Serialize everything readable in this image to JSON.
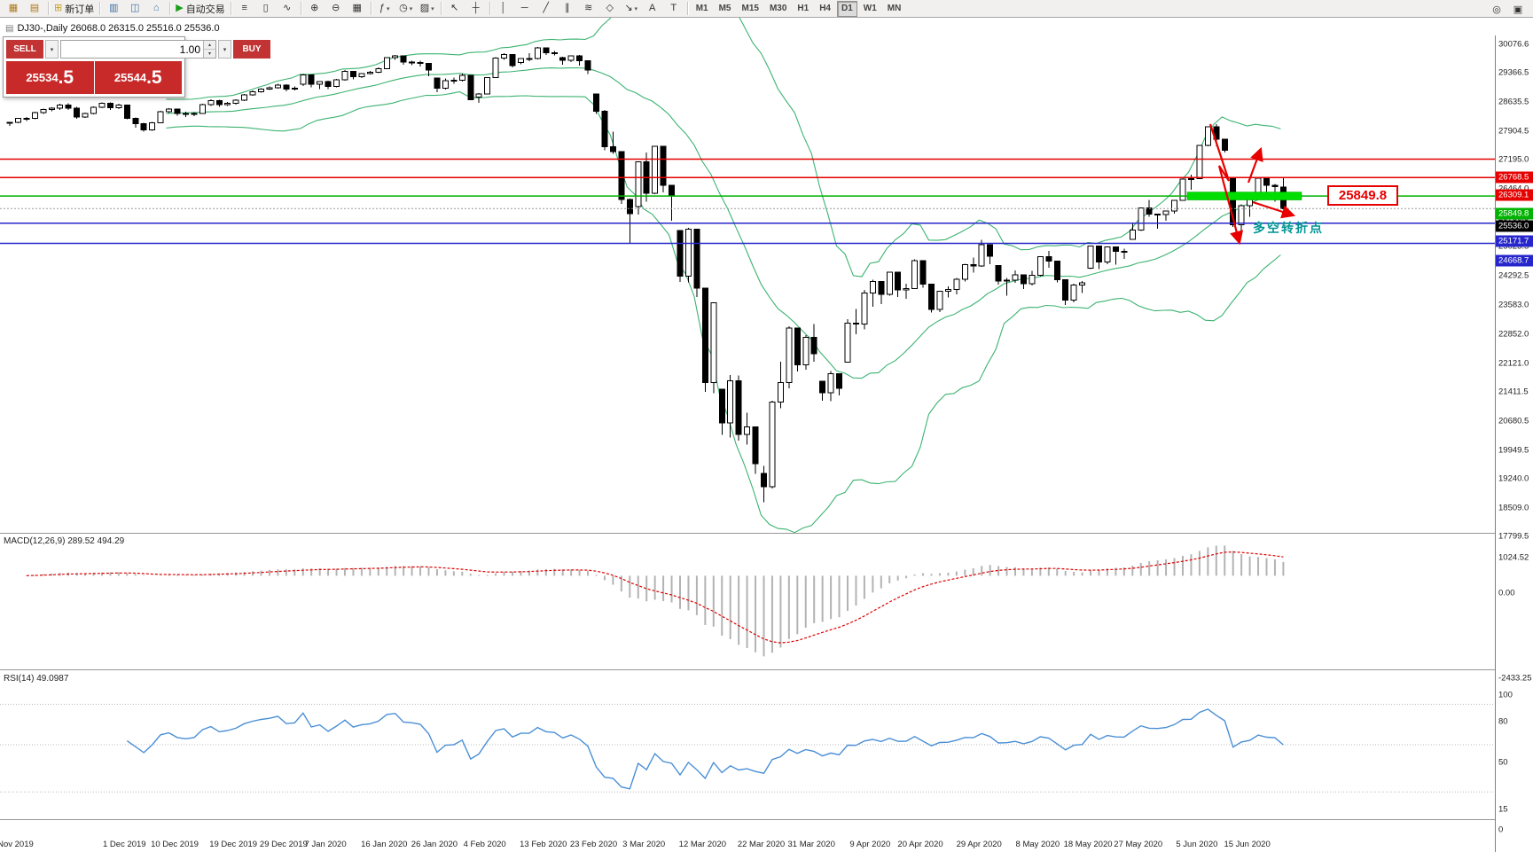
{
  "glyphs": {
    "caret_down": "▾",
    "spin_up": "▴",
    "spin_down": "▾"
  },
  "toolbar": {
    "groups": [
      {
        "items": [
          {
            "name": "new-chart-icon",
            "glyph": "▦",
            "color": "#b07820"
          },
          {
            "name": "chart-profiles-icon",
            "glyph": "▤",
            "color": "#b07820"
          }
        ]
      },
      {
        "items": [
          {
            "name": "new-order-button",
            "glyph": "⊞",
            "color": "#c7a020",
            "label": "新订单"
          }
        ]
      },
      {
        "items": [
          {
            "name": "market-watch-icon",
            "glyph": "▥",
            "color": "#3a6ea5"
          },
          {
            "name": "data-window-icon",
            "glyph": "◫",
            "color": "#3a6ea5"
          },
          {
            "name": "navigator-icon",
            "glyph": "⌂",
            "color": "#3a6ea5"
          }
        ]
      },
      {
        "items": [
          {
            "name": "auto-trading-button",
            "glyph": "▶",
            "color": "#1a9e1a",
            "label": "自动交易"
          }
        ]
      },
      {
        "items": [
          {
            "name": "bar-chart-icon",
            "glyph": "≡"
          },
          {
            "name": "candlestick-chart-icon",
            "glyph": "▯"
          },
          {
            "name": "line-chart-icon",
            "glyph": "∿"
          }
        ]
      },
      {
        "items": [
          {
            "name": "zoom-in-icon",
            "glyph": "⊕"
          },
          {
            "name": "zoom-out-icon",
            "glyph": "⊖"
          },
          {
            "name": "tile-windows-icon",
            "glyph": "▦"
          }
        ]
      },
      {
        "items": [
          {
            "name": "indicators-icon",
            "glyph": "ƒ",
            "caret": true
          },
          {
            "name": "periods-icon",
            "glyph": "◷",
            "caret": true
          },
          {
            "name": "templates-icon",
            "glyph": "▨",
            "caret": true
          }
        ]
      },
      {
        "items": [
          {
            "name": "cursor-icon",
            "glyph": "↖"
          },
          {
            "name": "crosshair-icon",
            "glyph": "┼"
          }
        ]
      },
      {
        "items": [
          {
            "name": "vertical-line-icon",
            "glyph": "│"
          },
          {
            "name": "horizontal-line-icon",
            "glyph": "─"
          },
          {
            "name": "trendline-icon",
            "glyph": "╱"
          },
          {
            "name": "channel-icon",
            "glyph": "∥"
          },
          {
            "name": "fibonacci-icon",
            "glyph": "≋"
          },
          {
            "name": "shapes-icon",
            "glyph": "◇"
          },
          {
            "name": "arrows-icon",
            "glyph": "↘",
            "caret": true
          },
          {
            "name": "text-icon",
            "glyph": "A"
          },
          {
            "name": "text-label-icon",
            "glyph": "T"
          }
        ]
      }
    ],
    "timeframes": [
      "M1",
      "M5",
      "M15",
      "M30",
      "H1",
      "H4",
      "D1",
      "W1",
      "MN"
    ],
    "active_timeframe": "D1",
    "right_icons": [
      {
        "name": "search-icon",
        "glyph": "◎"
      },
      {
        "name": "chart-list-icon",
        "glyph": "▣"
      }
    ]
  },
  "chart": {
    "symbol_icon": "▤",
    "symbol_title": "DJ30-,Daily  26068.0 26315.0 25516.0 25536.0",
    "trade_panel": {
      "sell_label": "SELL",
      "buy_label": "BUY",
      "volume": "1.00",
      "bid": "25534.5",
      "ask": "25544.5"
    },
    "axis_labels": [
      "30076.6",
      "29366.5",
      "28635.5",
      "27904.5",
      "27195.0",
      "26464.0",
      "25736.5",
      "25023.5",
      "24292.5",
      "23583.0",
      "22852.0",
      "22121.0",
      "21411.5",
      "20680.5",
      "19949.5",
      "19240.0",
      "18509.0",
      "17799.5"
    ],
    "levels": [
      {
        "label": "26768.5",
        "price": 26768.5,
        "color": "#e60000"
      },
      {
        "label": "26309.1",
        "price": 26309.1,
        "color": "#e60000"
      },
      {
        "label": "25849.8",
        "price": 25849.8,
        "color": "#00b300"
      },
      {
        "label": "25171.7",
        "price": 25171.7,
        "color": "#2626cc"
      },
      {
        "label": "24668.7",
        "price": 24668.7,
        "color": "#2626cc"
      }
    ],
    "current_price": {
      "label": "25536.0",
      "price": 25536.0,
      "color": "#000000"
    },
    "support_zone": {
      "price": 25849.8,
      "color": "#00dd00"
    },
    "annotations": {
      "price_callout": "25849.8",
      "turning_point": "多空转折点",
      "arrow_color": "#e60000"
    },
    "bands_color": "#3CB371",
    "date_labels": [
      {
        "text": "Nov 2019",
        "i": 1
      },
      {
        "text": "1 Dec 2019",
        "i": 14
      },
      {
        "text": "10 Dec 2019",
        "i": 20
      },
      {
        "text": "19 Dec 2019",
        "i": 27
      },
      {
        "text": "29 Dec 2019",
        "i": 33
      },
      {
        "text": "7 Jan 2020",
        "i": 38
      },
      {
        "text": "16 Jan 2020",
        "i": 45
      },
      {
        "text": "26 Jan 2020",
        "i": 51
      },
      {
        "text": "4 Feb 2020",
        "i": 57
      },
      {
        "text": "13 Feb 2020",
        "i": 64
      },
      {
        "text": "23 Feb 2020",
        "i": 70
      },
      {
        "text": "3 Mar 2020",
        "i": 76
      },
      {
        "text": "12 Mar 2020",
        "i": 83
      },
      {
        "text": "22 Mar 2020",
        "i": 90
      },
      {
        "text": "31 Mar 2020",
        "i": 96
      },
      {
        "text": "9 Apr 2020",
        "i": 103
      },
      {
        "text": "20 Apr 2020",
        "i": 109
      },
      {
        "text": "29 Apr 2020",
        "i": 116
      },
      {
        "text": "8 May 2020",
        "i": 123
      },
      {
        "text": "18 May 2020",
        "i": 129
      },
      {
        "text": "27 May 2020",
        "i": 135
      },
      {
        "text": "5 Jun 2020",
        "i": 142
      },
      {
        "text": "15 Jun 2020",
        "i": 148
      }
    ],
    "candles": [
      [
        27683,
        27700,
        27600,
        27691
      ],
      [
        27691,
        27800,
        27660,
        27783
      ],
      [
        27783,
        27820,
        27720,
        27782
      ],
      [
        27782,
        27950,
        27760,
        27934
      ],
      [
        27934,
        28030,
        27900,
        28004
      ],
      [
        28004,
        28060,
        27960,
        28036
      ],
      [
        28036,
        28150,
        28000,
        28121
      ],
      [
        28121,
        28160,
        28000,
        28045
      ],
      [
        28045,
        28070,
        27780,
        27821
      ],
      [
        27821,
        27930,
        27800,
        27911
      ],
      [
        27911,
        28090,
        27890,
        28066
      ],
      [
        28066,
        28180,
        28040,
        28164
      ],
      [
        28164,
        28180,
        28000,
        28051
      ],
      [
        28051,
        28150,
        28020,
        28121
      ],
      [
        28121,
        28130,
        27770,
        27783
      ],
      [
        27783,
        27810,
        27550,
        27650
      ],
      [
        27650,
        27680,
        27460,
        27502
      ],
      [
        27502,
        27700,
        27480,
        27678
      ],
      [
        27678,
        27970,
        27660,
        27955
      ],
      [
        27955,
        28040,
        27920,
        28015
      ],
      [
        28015,
        28030,
        27850,
        27910
      ],
      [
        27910,
        27950,
        27820,
        27882
      ],
      [
        27882,
        27940,
        27840,
        27912
      ],
      [
        27912,
        28150,
        27900,
        28132
      ],
      [
        28132,
        28260,
        28100,
        28235
      ],
      [
        28235,
        28250,
        28080,
        28135
      ],
      [
        28135,
        28200,
        28100,
        28168
      ],
      [
        28168,
        28260,
        28130,
        28236
      ],
      [
        28236,
        28400,
        28220,
        28376
      ],
      [
        28376,
        28480,
        28350,
        28455
      ],
      [
        28455,
        28540,
        28430,
        28515
      ],
      [
        28515,
        28580,
        28490,
        28551
      ],
      [
        28551,
        28650,
        28530,
        28621
      ],
      [
        28621,
        28640,
        28460,
        28515
      ],
      [
        28515,
        28580,
        28480,
        28538
      ],
      [
        28638,
        28890,
        28600,
        28869
      ],
      [
        28869,
        28880,
        28560,
        28635
      ],
      [
        28635,
        28720,
        28520,
        28703
      ],
      [
        28703,
        28730,
        28520,
        28583
      ],
      [
        28583,
        28770,
        28560,
        28745
      ],
      [
        28745,
        28990,
        28730,
        28957
      ],
      [
        28957,
        28970,
        28760,
        28824
      ],
      [
        28824,
        28920,
        28790,
        28907
      ],
      [
        28907,
        28970,
        28880,
        28939
      ],
      [
        28939,
        29060,
        28920,
        29030
      ],
      [
        29030,
        29310,
        29010,
        29297
      ],
      [
        29297,
        29374,
        29250,
        29348
      ],
      [
        29348,
        29360,
        29130,
        29196
      ],
      [
        29196,
        29230,
        29110,
        29186
      ],
      [
        29186,
        29220,
        29080,
        29160
      ],
      [
        29160,
        29170,
        28840,
        28990
      ],
      [
        28790,
        28800,
        28440,
        28536
      ],
      [
        28536,
        28780,
        28510,
        28723
      ],
      [
        28723,
        28810,
        28650,
        28734
      ],
      [
        28734,
        28900,
        28700,
        28859
      ],
      [
        28859,
        28860,
        28250,
        28256
      ],
      [
        28320,
        28420,
        28170,
        28400
      ],
      [
        28400,
        28820,
        28390,
        28808
      ],
      [
        28808,
        29310,
        28800,
        29291
      ],
      [
        29291,
        29409,
        29250,
        29380
      ],
      [
        29380,
        29390,
        29060,
        29103
      ],
      [
        29180,
        29290,
        29140,
        29277
      ],
      [
        29277,
        29415,
        29210,
        29276
      ],
      [
        29276,
        29568,
        29260,
        29551
      ],
      [
        29551,
        29560,
        29370,
        29423
      ],
      [
        29423,
        29470,
        29360,
        29398
      ],
      [
        29300,
        29320,
        29120,
        29232
      ],
      [
        29232,
        29360,
        29190,
        29348
      ],
      [
        29348,
        29370,
        29100,
        29220
      ],
      [
        29220,
        29230,
        28890,
        28992
      ],
      [
        28400,
        28410,
        27900,
        27961
      ],
      [
        27961,
        28000,
        26990,
        27081
      ],
      [
        27081,
        27450,
        26900,
        26958
      ],
      [
        26958,
        26960,
        25650,
        25767
      ],
      [
        25767,
        25780,
        24680,
        25409
      ],
      [
        25590,
        26710,
        25390,
        26703
      ],
      [
        26703,
        26930,
        25710,
        25917
      ],
      [
        25917,
        27100,
        25900,
        27091
      ],
      [
        27091,
        27100,
        25940,
        26121
      ],
      [
        26121,
        26130,
        25230,
        25865
      ],
      [
        24990,
        25000,
        23710,
        23851
      ],
      [
        23851,
        25050,
        23690,
        25018
      ],
      [
        25018,
        25030,
        23330,
        23553
      ],
      [
        23553,
        23560,
        20960,
        21200
      ],
      [
        21200,
        23190,
        20930,
        23186
      ],
      [
        21030,
        21040,
        19890,
        20188
      ],
      [
        20188,
        21380,
        19820,
        21237
      ],
      [
        21237,
        21370,
        19750,
        19899
      ],
      [
        19899,
        20440,
        19650,
        20087
      ],
      [
        20087,
        20100,
        18920,
        19174
      ],
      [
        18930,
        19120,
        18214,
        18592
      ],
      [
        18592,
        20740,
        18550,
        20705
      ],
      [
        20705,
        21720,
        20550,
        21200
      ],
      [
        21200,
        22600,
        21050,
        22552
      ],
      [
        22552,
        22560,
        21470,
        21637
      ],
      [
        21637,
        22380,
        21520,
        22327
      ],
      [
        22327,
        22650,
        21720,
        21917
      ],
      [
        21230,
        21240,
        20740,
        20944
      ],
      [
        20944,
        21480,
        20730,
        21413
      ],
      [
        21413,
        21420,
        20870,
        21053
      ],
      [
        21700,
        22780,
        21690,
        22680
      ],
      [
        22680,
        23030,
        22400,
        22654
      ],
      [
        22654,
        23510,
        22520,
        23434
      ],
      [
        23434,
        23760,
        23090,
        23719
      ],
      [
        23719,
        23730,
        23150,
        23391
      ],
      [
        23391,
        23960,
        23360,
        23950
      ],
      [
        23950,
        23960,
        23330,
        23504
      ],
      [
        23504,
        23660,
        23280,
        23538
      ],
      [
        23538,
        24270,
        23530,
        24242
      ],
      [
        24242,
        24250,
        23560,
        23650
      ],
      [
        23650,
        23660,
        22940,
        23019
      ],
      [
        23019,
        23480,
        22950,
        23476
      ],
      [
        23476,
        23600,
        23320,
        23515
      ],
      [
        23515,
        23810,
        23400,
        23775
      ],
      [
        23775,
        24160,
        23720,
        24134
      ],
      [
        24134,
        24310,
        23940,
        24102
      ],
      [
        24102,
        24760,
        24080,
        24634
      ],
      [
        24634,
        24640,
        24150,
        24346
      ],
      [
        24120,
        24130,
        23640,
        23724
      ],
      [
        23724,
        23800,
        23360,
        23749
      ],
      [
        23749,
        23990,
        23680,
        23883
      ],
      [
        23883,
        23890,
        23530,
        23665
      ],
      [
        23665,
        23980,
        23620,
        23876
      ],
      [
        23876,
        24350,
        23850,
        24331
      ],
      [
        24331,
        24480,
        24060,
        24222
      ],
      [
        24222,
        24230,
        23690,
        23765
      ],
      [
        23765,
        23770,
        23130,
        23248
      ],
      [
        23248,
        23660,
        23200,
        23625
      ],
      [
        23625,
        23730,
        23430,
        23685
      ],
      [
        24050,
        24600,
        24030,
        24597
      ],
      [
        24597,
        24610,
        24030,
        24206
      ],
      [
        24206,
        24580,
        24150,
        24576
      ],
      [
        24576,
        24580,
        24140,
        24474
      ],
      [
        24474,
        24530,
        24280,
        24465
      ],
      [
        24770,
        25180,
        24760,
        24995
      ],
      [
        24995,
        25560,
        24980,
        25548
      ],
      [
        25548,
        25750,
        25330,
        25401
      ],
      [
        25401,
        25410,
        25030,
        25383
      ],
      [
        25383,
        25480,
        25230,
        25475
      ],
      [
        25475,
        25750,
        25410,
        25743
      ],
      [
        25743,
        26280,
        25740,
        26270
      ],
      [
        26270,
        26380,
        26010,
        26282
      ],
      [
        26282,
        27120,
        26280,
        27111
      ],
      [
        27111,
        27580,
        27090,
        27572
      ],
      [
        27572,
        27640,
        27090,
        27272
      ],
      [
        27272,
        27280,
        26940,
        26990
      ],
      [
        26280,
        26290,
        25080,
        25128
      ],
      [
        25128,
        25640,
        24840,
        25605
      ],
      [
        25605,
        25770,
        25330,
        25763
      ],
      [
        25763,
        26300,
        25750,
        26290
      ],
      [
        26290,
        26300,
        25810,
        26120
      ],
      [
        26120,
        26150,
        25710,
        26080
      ],
      [
        26068,
        26315,
        25516,
        25536
      ]
    ]
  },
  "macd": {
    "label": "MACD(12,26,9) 289.52 494.29",
    "axis_labels": [
      "1024.52",
      "0.00",
      "-2433.25"
    ]
  },
  "rsi": {
    "label": "RSI(14) 49.0987",
    "axis_labels": [
      "100",
      "80",
      "50",
      "15",
      "0"
    ],
    "level_lines": [
      80,
      50,
      15
    ]
  }
}
